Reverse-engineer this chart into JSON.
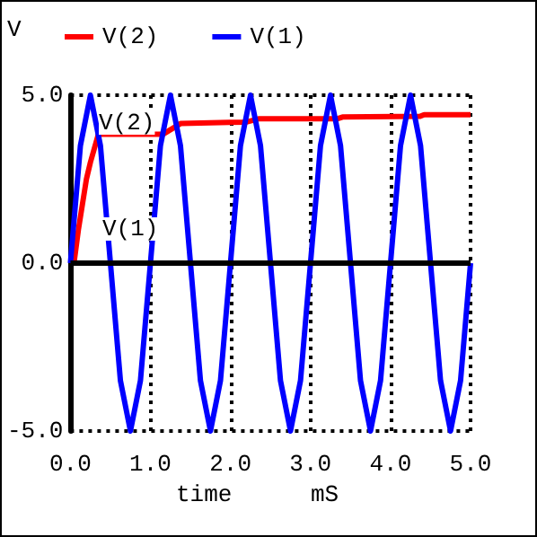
{
  "chart_data": {
    "type": "line",
    "ylabel": "V",
    "xlabel": "time",
    "xlim": [
      0,
      5
    ],
    "ylim": [
      -5,
      5
    ],
    "xticks": [
      {
        "value": 0,
        "label": "0.0"
      },
      {
        "value": 1,
        "label": "1.0"
      },
      {
        "value": 2,
        "label": "2.0"
      },
      {
        "value": 3,
        "label": "3.0"
      },
      {
        "value": 4,
        "label": "4.0"
      },
      {
        "value": 5,
        "label": "5.0"
      }
    ],
    "yticks": [
      {
        "value": -5,
        "label": "-5.0"
      },
      {
        "value": 0,
        "label": "0.0"
      },
      {
        "value": 5,
        "label": "5.0"
      }
    ],
    "grid": true,
    "legend": "top left",
    "line_style": "solid",
    "marker": "none",
    "series": [
      {
        "name": "V(2)",
        "color": "#ff0000",
        "x": [
          0,
          0.05,
          0.1,
          0.2,
          0.25,
          0.35,
          1.16,
          1.38,
          2.2,
          2.36,
          3.34,
          3.4,
          4.37,
          4.42,
          5
        ],
        "values": [
          0,
          0.1,
          1,
          2.5,
          3,
          3.84,
          3.84,
          4.16,
          4.2,
          4.3,
          4.3,
          4.35,
          4.37,
          4.42,
          4.42
        ]
      },
      {
        "name": "V(1)",
        "color": "#0000ff",
        "x": [
          0,
          0.125,
          0.25,
          0.375,
          0.5,
          0.625,
          0.75,
          0.875,
          1,
          1.125,
          1.25,
          1.375,
          1.5,
          1.625,
          1.75,
          1.875,
          2,
          2.125,
          2.25,
          2.375,
          2.5,
          2.625,
          2.75,
          2.875,
          3,
          3.125,
          3.25,
          3.375,
          3.5,
          3.625,
          3.75,
          3.875,
          4,
          4.125,
          4.25,
          4.375,
          4.5,
          4.625,
          4.75,
          4.875,
          5
        ],
        "values": [
          0,
          3.5,
          5,
          3.5,
          0,
          -3.5,
          -5,
          -3.5,
          0,
          3.5,
          5,
          3.5,
          0,
          -3.5,
          -5,
          -3.5,
          0,
          3.5,
          5,
          3.5,
          0,
          -3.5,
          -5,
          -3.5,
          0,
          3.5,
          5,
          3.5,
          0,
          -3.5,
          -5,
          -3.5,
          0,
          3.5,
          5,
          3.5,
          0,
          -3.5,
          -5,
          -3.5,
          0
        ]
      }
    ],
    "annotations": [
      "V(2)",
      "V(1)",
      "mS"
    ]
  }
}
